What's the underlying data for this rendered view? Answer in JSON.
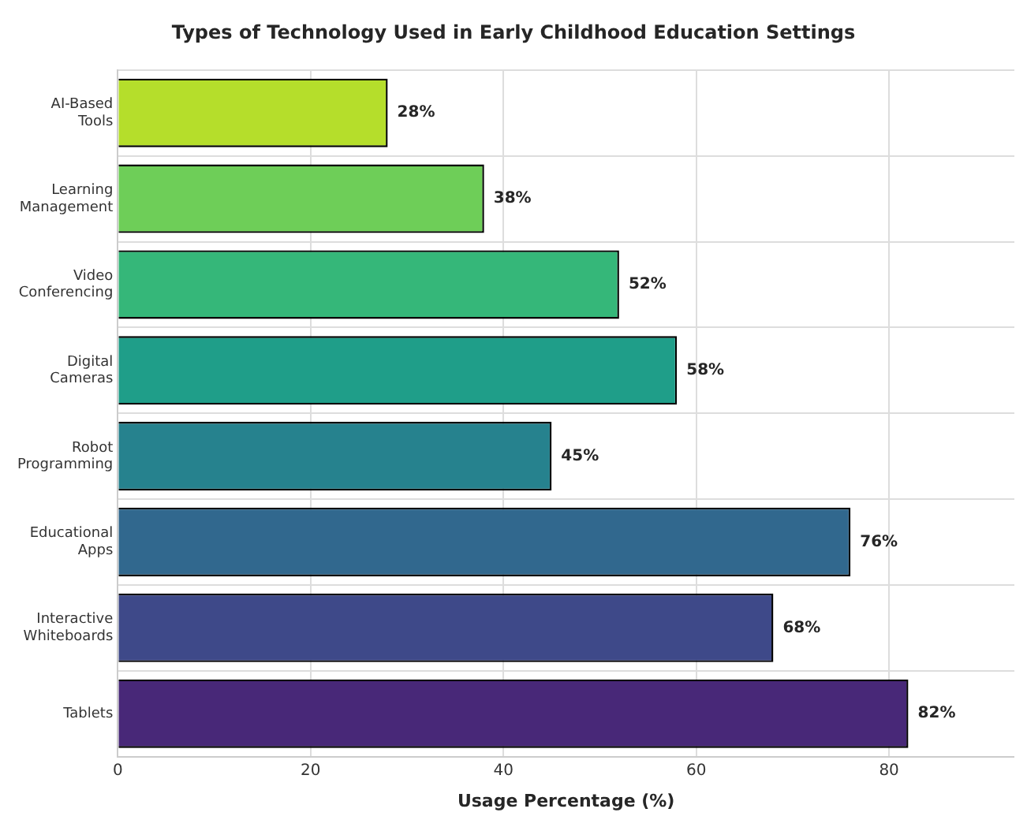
{
  "chart_data": {
    "type": "bar",
    "orientation": "horizontal",
    "title": "Types of Technology Used in Early Childhood Education Settings",
    "xlabel": "Usage Percentage (%)",
    "categories": [
      "AI-Based Tools",
      "Learning Management",
      "Video Conferencing",
      "Digital Cameras",
      "Robot Programming",
      "Educational Apps",
      "Interactive Whiteboards",
      "Tablets"
    ],
    "values": [
      28,
      38,
      52,
      58,
      45,
      76,
      68,
      82
    ],
    "value_labels": [
      "28%",
      "38%",
      "52%",
      "58%",
      "45%",
      "76%",
      "68%",
      "82%"
    ],
    "colors": [
      "#b5de2b",
      "#6ece58",
      "#35b779",
      "#1f9e89",
      "#26828e",
      "#31688e",
      "#3e4989",
      "#482878"
    ],
    "xlim": [
      0,
      93
    ],
    "xticks": [
      0,
      20,
      40,
      60,
      80
    ],
    "grid": true,
    "legend": false
  }
}
